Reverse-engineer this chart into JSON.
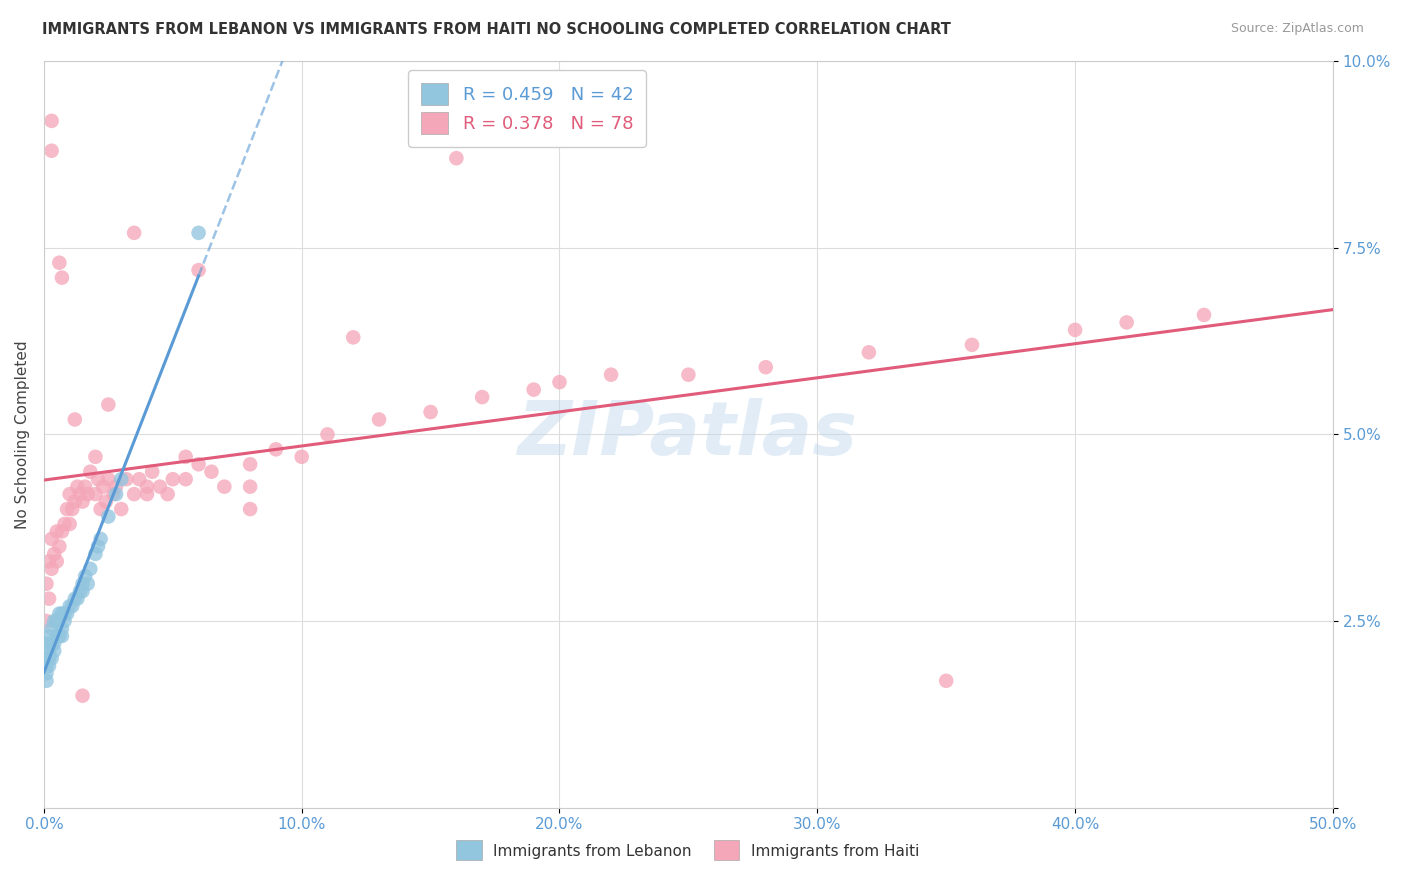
{
  "title": "IMMIGRANTS FROM LEBANON VS IMMIGRANTS FROM HAITI NO SCHOOLING COMPLETED CORRELATION CHART",
  "source": "Source: ZipAtlas.com",
  "ylabel": "No Schooling Completed",
  "xlim": [
    0.0,
    0.5
  ],
  "ylim": [
    0.0,
    0.1
  ],
  "xtick_vals": [
    0.0,
    0.1,
    0.2,
    0.3,
    0.4,
    0.5
  ],
  "xtick_labels": [
    "0.0%",
    "10.0%",
    "20.0%",
    "30.0%",
    "40.0%",
    "50.0%"
  ],
  "ytick_vals": [
    0.0,
    0.025,
    0.05,
    0.075,
    0.1
  ],
  "ytick_labels": [
    "",
    "2.5%",
    "5.0%",
    "7.5%",
    "10.0%"
  ],
  "legend_R_lebanon": "0.459",
  "legend_N_lebanon": "42",
  "legend_R_haiti": "0.378",
  "legend_N_haiti": "78",
  "color_lebanon": "#92C5DE",
  "color_haiti": "#F4A7B9",
  "trend_lebanon_color": "#5B9BD5",
  "trend_haiti_color": "#E05C7A",
  "watermark": "ZIPatlas",
  "lebanon_x": [
    0.001,
    0.001,
    0.001,
    0.001,
    0.001,
    0.002,
    0.002,
    0.002,
    0.002,
    0.003,
    0.003,
    0.003,
    0.004,
    0.004,
    0.004,
    0.005,
    0.005,
    0.006,
    0.006,
    0.007,
    0.007,
    0.007,
    0.008,
    0.008,
    0.009,
    0.01,
    0.011,
    0.012,
    0.013,
    0.014,
    0.015,
    0.015,
    0.016,
    0.017,
    0.018,
    0.02,
    0.021,
    0.022,
    0.025,
    0.028,
    0.03,
    0.06
  ],
  "lebanon_y": [
    0.02,
    0.019,
    0.018,
    0.022,
    0.017,
    0.021,
    0.02,
    0.019,
    0.023,
    0.022,
    0.02,
    0.024,
    0.022,
    0.021,
    0.025,
    0.023,
    0.025,
    0.023,
    0.026,
    0.024,
    0.023,
    0.026,
    0.025,
    0.026,
    0.026,
    0.027,
    0.027,
    0.028,
    0.028,
    0.029,
    0.03,
    0.029,
    0.031,
    0.03,
    0.032,
    0.034,
    0.035,
    0.036,
    0.039,
    0.042,
    0.044,
    0.077
  ],
  "haiti_x": [
    0.001,
    0.001,
    0.002,
    0.002,
    0.003,
    0.003,
    0.004,
    0.005,
    0.005,
    0.006,
    0.007,
    0.008,
    0.009,
    0.01,
    0.01,
    0.011,
    0.012,
    0.013,
    0.014,
    0.015,
    0.016,
    0.017,
    0.018,
    0.02,
    0.021,
    0.022,
    0.023,
    0.024,
    0.025,
    0.027,
    0.028,
    0.03,
    0.032,
    0.035,
    0.037,
    0.04,
    0.042,
    0.045,
    0.048,
    0.05,
    0.055,
    0.06,
    0.065,
    0.07,
    0.08,
    0.09,
    0.1,
    0.11,
    0.13,
    0.15,
    0.17,
    0.19,
    0.22,
    0.25,
    0.28,
    0.32,
    0.36,
    0.4,
    0.42,
    0.45,
    0.02,
    0.04,
    0.06,
    0.08,
    0.16,
    0.35,
    0.003,
    0.007,
    0.012,
    0.025,
    0.035,
    0.055,
    0.08,
    0.12,
    0.2,
    0.003,
    0.006,
    0.015
  ],
  "haiti_y": [
    0.025,
    0.03,
    0.028,
    0.033,
    0.032,
    0.036,
    0.034,
    0.033,
    0.037,
    0.035,
    0.037,
    0.038,
    0.04,
    0.038,
    0.042,
    0.04,
    0.041,
    0.043,
    0.042,
    0.041,
    0.043,
    0.042,
    0.045,
    0.042,
    0.044,
    0.04,
    0.043,
    0.041,
    0.044,
    0.042,
    0.043,
    0.04,
    0.044,
    0.042,
    0.044,
    0.043,
    0.045,
    0.043,
    0.042,
    0.044,
    0.044,
    0.046,
    0.045,
    0.043,
    0.046,
    0.048,
    0.047,
    0.05,
    0.052,
    0.053,
    0.055,
    0.056,
    0.058,
    0.058,
    0.059,
    0.061,
    0.062,
    0.064,
    0.065,
    0.066,
    0.047,
    0.042,
    0.072,
    0.043,
    0.087,
    0.017,
    0.092,
    0.071,
    0.052,
    0.054,
    0.077,
    0.047,
    0.04,
    0.063,
    0.057,
    0.088,
    0.073,
    0.015
  ]
}
